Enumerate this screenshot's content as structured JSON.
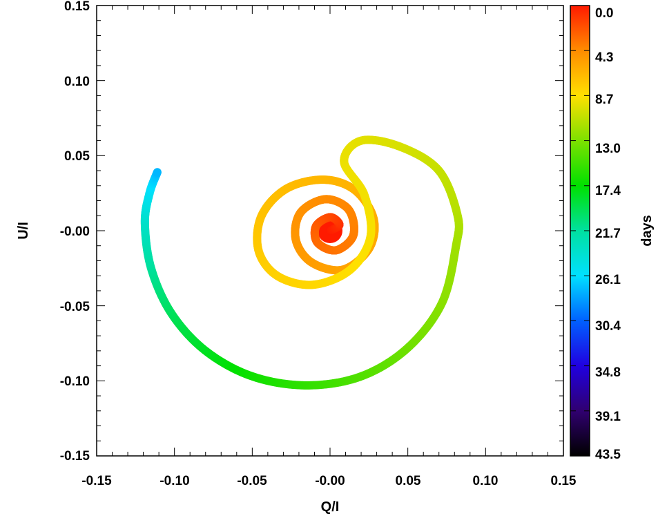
{
  "chart_data": {
    "type": "scatter",
    "title": "",
    "xlabel": "Q/I",
    "ylabel": "U/I",
    "xlim": [
      -0.15,
      0.15
    ],
    "ylim": [
      -0.15,
      0.15
    ],
    "x_ticks": [
      "-0.15",
      "-0.10",
      "-0.05",
      "-0.00",
      "0.05",
      "0.10",
      "0.15"
    ],
    "y_ticks": [
      "0.15",
      "0.10",
      "0.05",
      "-0.00",
      "-0.05",
      "-0.10",
      "-0.15"
    ],
    "grid": false,
    "colorbar": {
      "label": "days",
      "range": [
        0.0,
        43.5
      ],
      "tick_labels": [
        "0.0",
        "4.3",
        "8.7",
        "13.0",
        "17.4",
        "21.7",
        "26.1",
        "30.4",
        "34.8",
        "39.1",
        "43.5"
      ],
      "colormap": "rainbow (red at 0 days to black at 43.5 days)"
    },
    "series": [
      {
        "points": [
          {
            "x": 0.0,
            "y": 0.0,
            "days": 0.0
          },
          {
            "x": 0.006,
            "y": 0.004,
            "days": 0.8
          },
          {
            "x": 0.0,
            "y": 0.009,
            "days": 1.6
          },
          {
            "x": -0.009,
            "y": 0.003,
            "days": 2.4
          },
          {
            "x": -0.008,
            "y": -0.008,
            "days": 3.0
          },
          {
            "x": 0.004,
            "y": -0.013,
            "days": 3.4
          },
          {
            "x": 0.015,
            "y": -0.003,
            "days": 3.8
          },
          {
            "x": 0.012,
            "y": 0.014,
            "days": 4.1
          },
          {
            "x": -0.003,
            "y": 0.021,
            "days": 4.3
          },
          {
            "x": -0.019,
            "y": 0.012,
            "days": 4.6
          },
          {
            "x": -0.022,
            "y": -0.006,
            "days": 4.9
          },
          {
            "x": -0.012,
            "y": -0.021,
            "days": 5.2
          },
          {
            "x": 0.008,
            "y": -0.026,
            "days": 5.5
          },
          {
            "x": 0.025,
            "y": -0.012,
            "days": 5.8
          },
          {
            "x": 0.028,
            "y": 0.008,
            "days": 6.0
          },
          {
            "x": 0.016,
            "y": 0.027,
            "days": 6.3
          },
          {
            "x": -0.004,
            "y": 0.034,
            "days": 6.5
          },
          {
            "x": -0.028,
            "y": 0.028,
            "days": 6.8
          },
          {
            "x": -0.044,
            "y": 0.01,
            "days": 7.1
          },
          {
            "x": -0.046,
            "y": -0.013,
            "days": 7.5
          },
          {
            "x": -0.034,
            "y": -0.03,
            "days": 7.9
          },
          {
            "x": -0.011,
            "y": -0.036,
            "days": 8.2
          },
          {
            "x": 0.013,
            "y": -0.026,
            "days": 8.6
          },
          {
            "x": 0.026,
            "y": -0.004,
            "days": 8.9
          },
          {
            "x": 0.022,
            "y": 0.024,
            "days": 9.1
          },
          {
            "x": 0.009,
            "y": 0.046,
            "days": 9.3
          },
          {
            "x": 0.02,
            "y": 0.06,
            "days": 9.6
          },
          {
            "x": 0.045,
            "y": 0.056,
            "days": 10.0
          },
          {
            "x": 0.07,
            "y": 0.04,
            "days": 10.6
          },
          {
            "x": 0.082,
            "y": 0.01,
            "days": 11.2
          },
          {
            "x": 0.081,
            "y": -0.01,
            "days": 11.8
          },
          {
            "x": 0.072,
            "y": -0.048,
            "days": 12.6
          },
          {
            "x": 0.05,
            "y": -0.078,
            "days": 13.5
          },
          {
            "x": 0.02,
            "y": -0.097,
            "days": 14.5
          },
          {
            "x": -0.015,
            "y": -0.103,
            "days": 15.6
          },
          {
            "x": -0.05,
            "y": -0.097,
            "days": 16.8
          },
          {
            "x": -0.08,
            "y": -0.08,
            "days": 18.2
          },
          {
            "x": -0.102,
            "y": -0.055,
            "days": 19.8
          },
          {
            "x": -0.115,
            "y": -0.025,
            "days": 21.5
          },
          {
            "x": -0.119,
            "y": 0.005,
            "days": 23.5
          },
          {
            "x": -0.116,
            "y": 0.025,
            "days": 25.5
          },
          {
            "x": -0.111,
            "y": 0.039,
            "days": 27.5
          }
        ]
      }
    ]
  }
}
